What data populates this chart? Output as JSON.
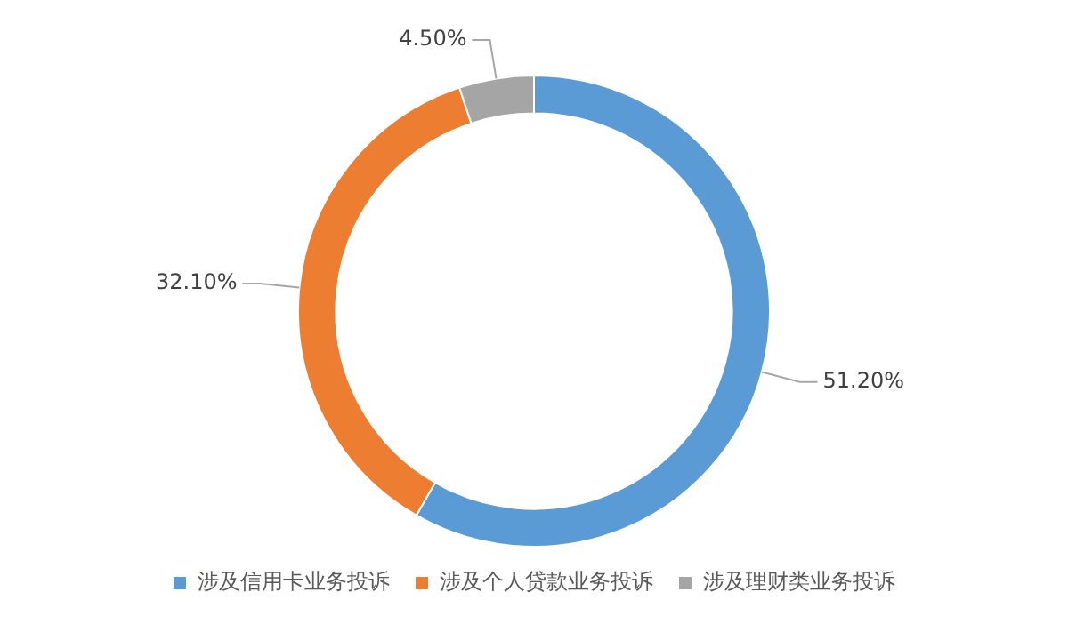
{
  "chart_data": {
    "type": "donut",
    "categories": [
      "涉及信用卡业务投诉",
      "涉及个人贷款业务投诉",
      "涉及理财类业务投诉"
    ],
    "values": [
      51.2,
      32.1,
      4.5
    ],
    "value_labels": [
      "51.20%",
      "32.10%",
      "4.50%"
    ],
    "colors": [
      "#5b9bd5",
      "#ed7d31",
      "#a5a5a5"
    ],
    "legend": "bottom"
  }
}
